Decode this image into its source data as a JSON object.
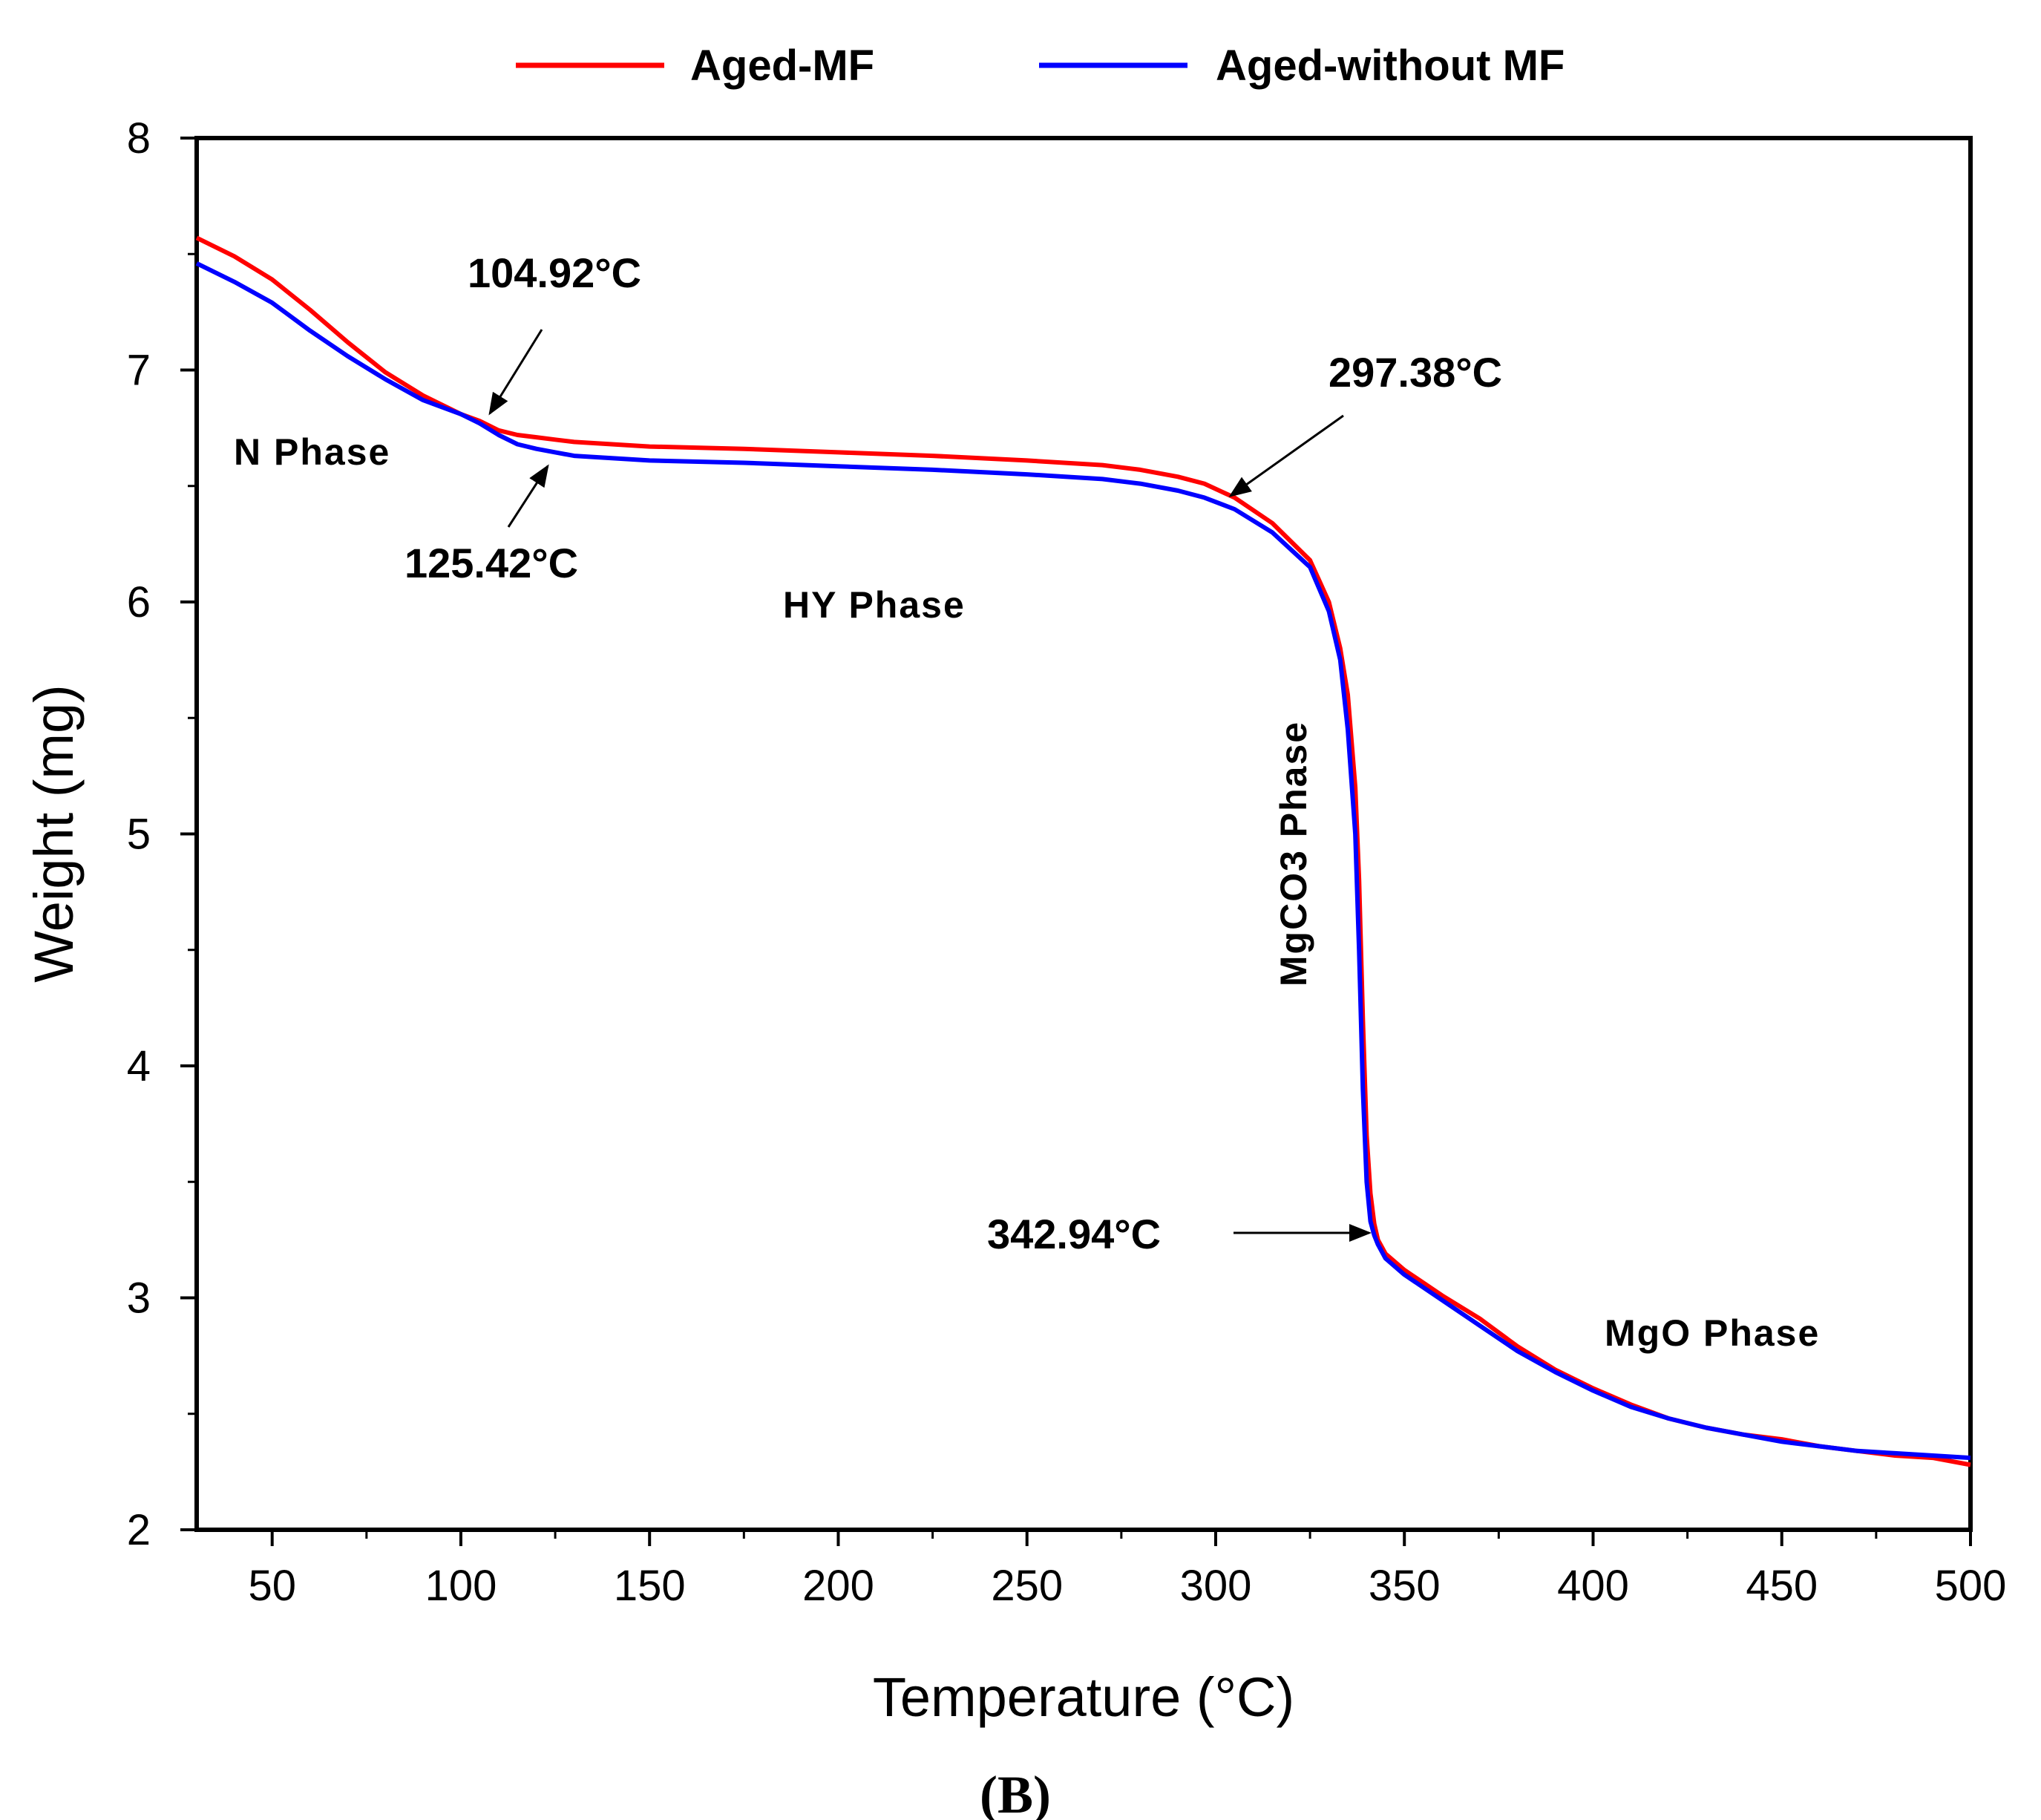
{
  "chart_data": {
    "type": "line",
    "title": "",
    "xlabel": "Temperature (°C)",
    "ylabel": "Weight (mg)",
    "xlim": [
      30,
      500
    ],
    "ylim": [
      2,
      8
    ],
    "xticks": [
      50,
      100,
      150,
      200,
      250,
      300,
      350,
      400,
      450,
      500
    ],
    "yticks": [
      2,
      3,
      4,
      5,
      6,
      7,
      8
    ],
    "grid": false,
    "legend_position": "top",
    "panel_label": "(B)",
    "series": [
      {
        "name": "Aged-MF",
        "color": "#ff0000",
        "x": [
          30,
          40,
          50,
          60,
          70,
          80,
          90,
          100,
          105,
          110,
          115,
          120,
          125,
          130,
          140,
          150,
          175,
          200,
          225,
          250,
          270,
          280,
          290,
          297,
          305,
          315,
          325,
          330,
          333,
          335,
          337,
          338,
          339,
          340,
          341,
          342,
          343,
          345,
          350,
          360,
          370,
          380,
          390,
          400,
          410,
          420,
          430,
          440,
          450,
          460,
          470,
          480,
          490,
          500
        ],
        "values": [
          7.57,
          7.49,
          7.39,
          7.26,
          7.12,
          6.99,
          6.89,
          6.81,
          6.78,
          6.74,
          6.72,
          6.71,
          6.7,
          6.69,
          6.68,
          6.67,
          6.66,
          6.645,
          6.63,
          6.61,
          6.59,
          6.57,
          6.54,
          6.51,
          6.45,
          6.34,
          6.18,
          6.0,
          5.8,
          5.6,
          5.2,
          4.8,
          4.2,
          3.7,
          3.45,
          3.32,
          3.25,
          3.19,
          3.12,
          3.01,
          2.91,
          2.79,
          2.69,
          2.61,
          2.54,
          2.48,
          2.44,
          2.41,
          2.39,
          2.36,
          2.34,
          2.32,
          2.31,
          2.28
        ]
      },
      {
        "name": "Aged-without MF",
        "color": "#0000ff",
        "x": [
          30,
          40,
          50,
          60,
          70,
          80,
          90,
          100,
          105,
          110,
          115,
          120,
          125,
          130,
          140,
          150,
          175,
          200,
          225,
          250,
          270,
          280,
          290,
          297,
          305,
          315,
          325,
          330,
          333,
          335,
          337,
          338,
          339,
          340,
          341,
          342,
          343,
          345,
          350,
          360,
          370,
          380,
          390,
          400,
          410,
          420,
          430,
          440,
          450,
          460,
          470,
          480,
          490,
          500
        ],
        "values": [
          7.46,
          7.38,
          7.29,
          7.17,
          7.06,
          6.96,
          6.87,
          6.81,
          6.77,
          6.72,
          6.68,
          6.66,
          6.645,
          6.63,
          6.62,
          6.61,
          6.6,
          6.585,
          6.57,
          6.55,
          6.53,
          6.51,
          6.48,
          6.45,
          6.4,
          6.3,
          6.15,
          5.96,
          5.75,
          5.45,
          5.0,
          4.5,
          3.9,
          3.5,
          3.33,
          3.27,
          3.23,
          3.17,
          3.1,
          2.99,
          2.88,
          2.77,
          2.68,
          2.6,
          2.53,
          2.48,
          2.44,
          2.41,
          2.38,
          2.36,
          2.34,
          2.33,
          2.32,
          2.31
        ]
      }
    ],
    "annotations": [
      {
        "text": "104.92°C",
        "x": 104.92,
        "y": 6.78
      },
      {
        "text": "125.42°C",
        "x": 125.42,
        "y": 6.65
      },
      {
        "text": "297.38°C",
        "x": 297.38,
        "y": 6.49
      },
      {
        "text": "342.94°C",
        "x": 342.94,
        "y": 3.27
      }
    ],
    "phase_labels": [
      {
        "text": "N Phase",
        "x": 100,
        "y": 6.7
      },
      {
        "text": "HY Phase",
        "x": 260,
        "y": 5.9
      },
      {
        "text": "MgCO3 Phase",
        "x": 325,
        "y": 5.0
      },
      {
        "text": "MgO Phase",
        "x": 462,
        "y": 2.85
      }
    ]
  }
}
